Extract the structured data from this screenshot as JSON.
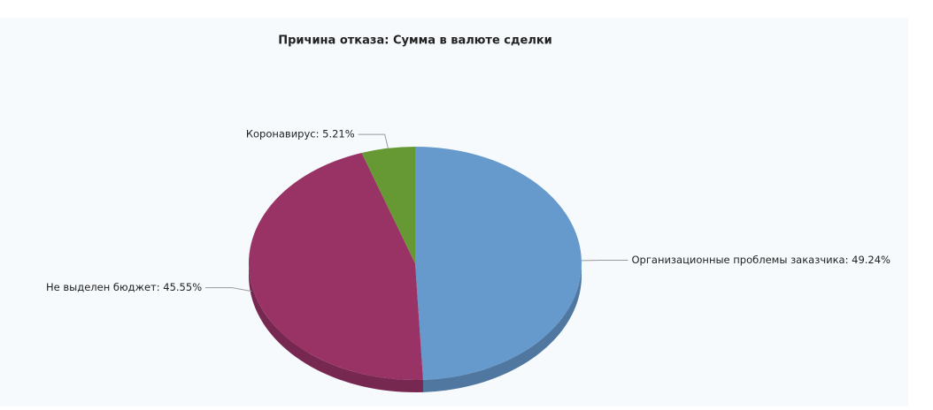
{
  "chart_data": {
    "type": "pie",
    "title": "Причина отказа: Сумма в валюте сделки",
    "values": [
      49.24,
      45.55,
      5.21
    ],
    "value_labels": [
      "Организационные проблемы заказчика: 49.24%",
      "Не выделен бюджет: 45.55%",
      "Коронавирус: 5.21%"
    ],
    "colors": [
      "#6699cc",
      "#993366",
      "#669933"
    ]
  }
}
